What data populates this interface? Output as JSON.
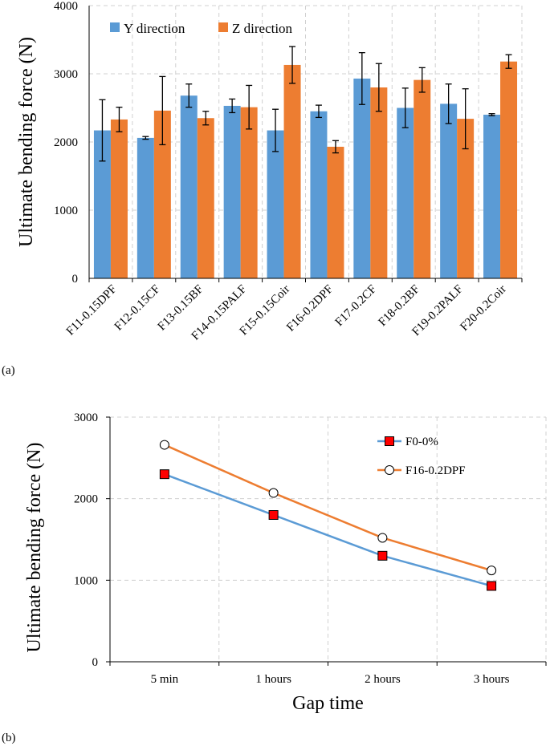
{
  "chart_data": [
    {
      "panel_label": "(a)",
      "type": "bar",
      "ylabel": "Ultimate bending force (N)",
      "xlabel": "",
      "ylim": [
        0,
        4000
      ],
      "yticks": [
        0,
        1000,
        2000,
        3000,
        4000
      ],
      "grid": true,
      "legend_position": "top-left",
      "categories": [
        "F11-0.15DPF",
        "F12-0.15CF",
        "F13-0.15BF",
        "F14-0.15PALF",
        "F15-0.15Coir",
        "F16-0.2DPF",
        "F17-0.2CF",
        "F18-0.2BF",
        "F19-0.2PALF",
        "F20-0.2Coir"
      ],
      "series": [
        {
          "name": "Y direction",
          "color": "#5b9bd5",
          "values": [
            2170,
            2060,
            2680,
            2530,
            2170,
            2450,
            2930,
            2500,
            2560,
            2400
          ],
          "errors": [
            450,
            20,
            170,
            100,
            310,
            90,
            380,
            290,
            290,
            15
          ]
        },
        {
          "name": "Z direction",
          "color": "#ed7d31",
          "values": [
            2330,
            2460,
            2350,
            2510,
            3130,
            1930,
            2800,
            2910,
            2340,
            3180
          ],
          "errors": [
            180,
            500,
            100,
            320,
            270,
            90,
            350,
            180,
            440,
            100
          ]
        }
      ]
    },
    {
      "panel_label": "(b)",
      "type": "line",
      "ylabel": "Ultimate bending force (N)",
      "xlabel": "Gap time",
      "ylim": [
        0,
        3000
      ],
      "yticks": [
        0,
        1000,
        2000,
        3000
      ],
      "grid": true,
      "legend_position": "top-right",
      "categories": [
        "5 min",
        "1 hours",
        "2 hours",
        "3 hours"
      ],
      "series": [
        {
          "name": "F0-0%",
          "color": "#5b9bd5",
          "marker": "square",
          "marker_color": "#ff0000",
          "values": [
            2300,
            1800,
            1300,
            930
          ]
        },
        {
          "name": "F16-0.2DPF",
          "color": "#ed7d31",
          "marker": "circle",
          "marker_color": "#ffffff",
          "values": [
            2660,
            2070,
            1520,
            1120
          ]
        }
      ]
    }
  ]
}
